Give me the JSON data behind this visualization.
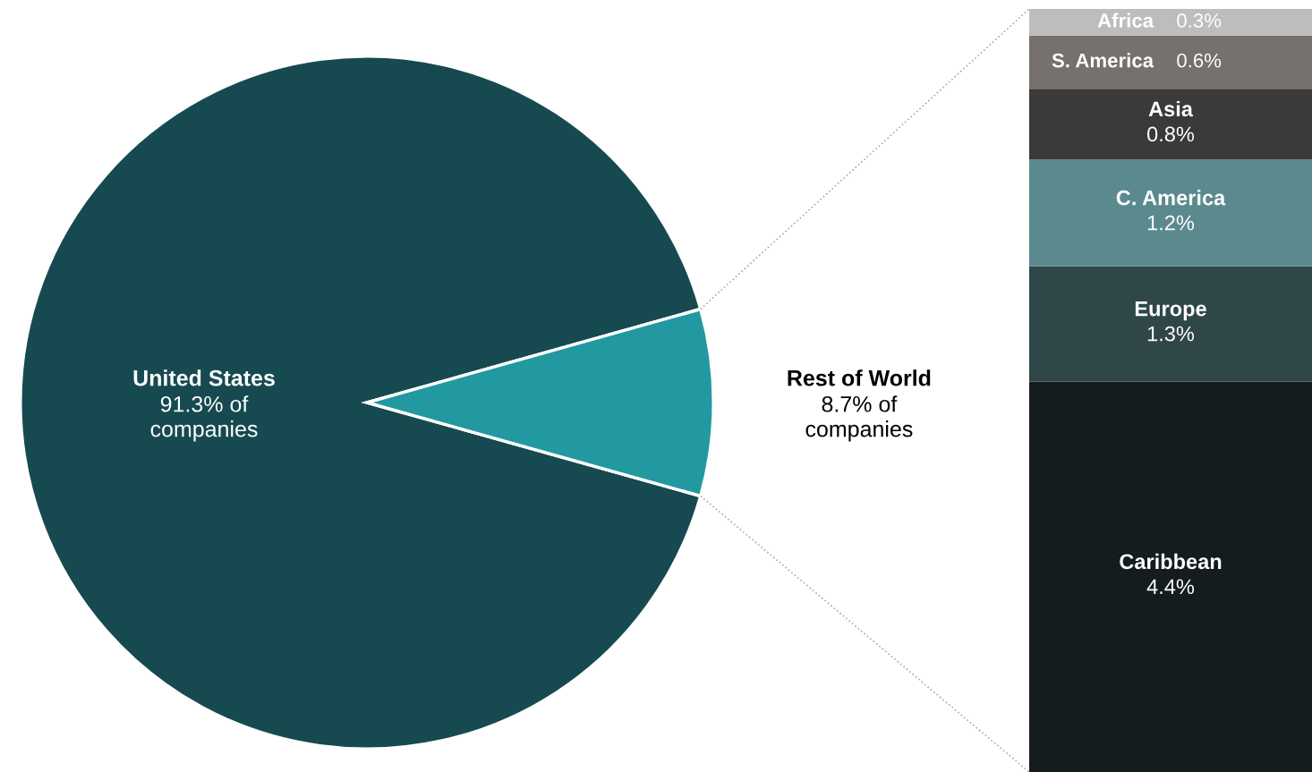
{
  "chart_data": [
    {
      "type": "pie",
      "categories": [
        "United States",
        "Rest of World"
      ],
      "values": [
        91.3,
        8.7
      ],
      "colors": [
        "#164a50",
        "#2299a0"
      ],
      "value_labels": [
        "91.3% of\ncompanies",
        "8.7% of\ncompanies"
      ],
      "legend": false
    },
    {
      "type": "bar",
      "stacked": true,
      "categories": [
        null
      ],
      "legend": false,
      "series": [
        {
          "name": "Caribbean",
          "color": "#141c1e",
          "values": [
            4.4
          ],
          "value_labels": [
            "4.4%"
          ]
        },
        {
          "name": "Europe",
          "color": "#30474a",
          "values": [
            1.3
          ],
          "value_labels": [
            "1.3%"
          ]
        },
        {
          "name": "C. America",
          "color": "#5a8a8e",
          "values": [
            1.2
          ],
          "value_labels": [
            "1.2%"
          ]
        },
        {
          "name": "Asia",
          "color": "#3c3a38",
          "values": [
            0.8
          ],
          "value_labels": [
            "0.8%"
          ]
        },
        {
          "name": "S. America",
          "color": "#76706e",
          "values": [
            0.6
          ],
          "value_labels": [
            "0.6%"
          ]
        },
        {
          "name": "Africa",
          "color": "#bdbdbd",
          "values": [
            0.3
          ],
          "value_labels": [
            "0.3%"
          ]
        }
      ]
    }
  ]
}
